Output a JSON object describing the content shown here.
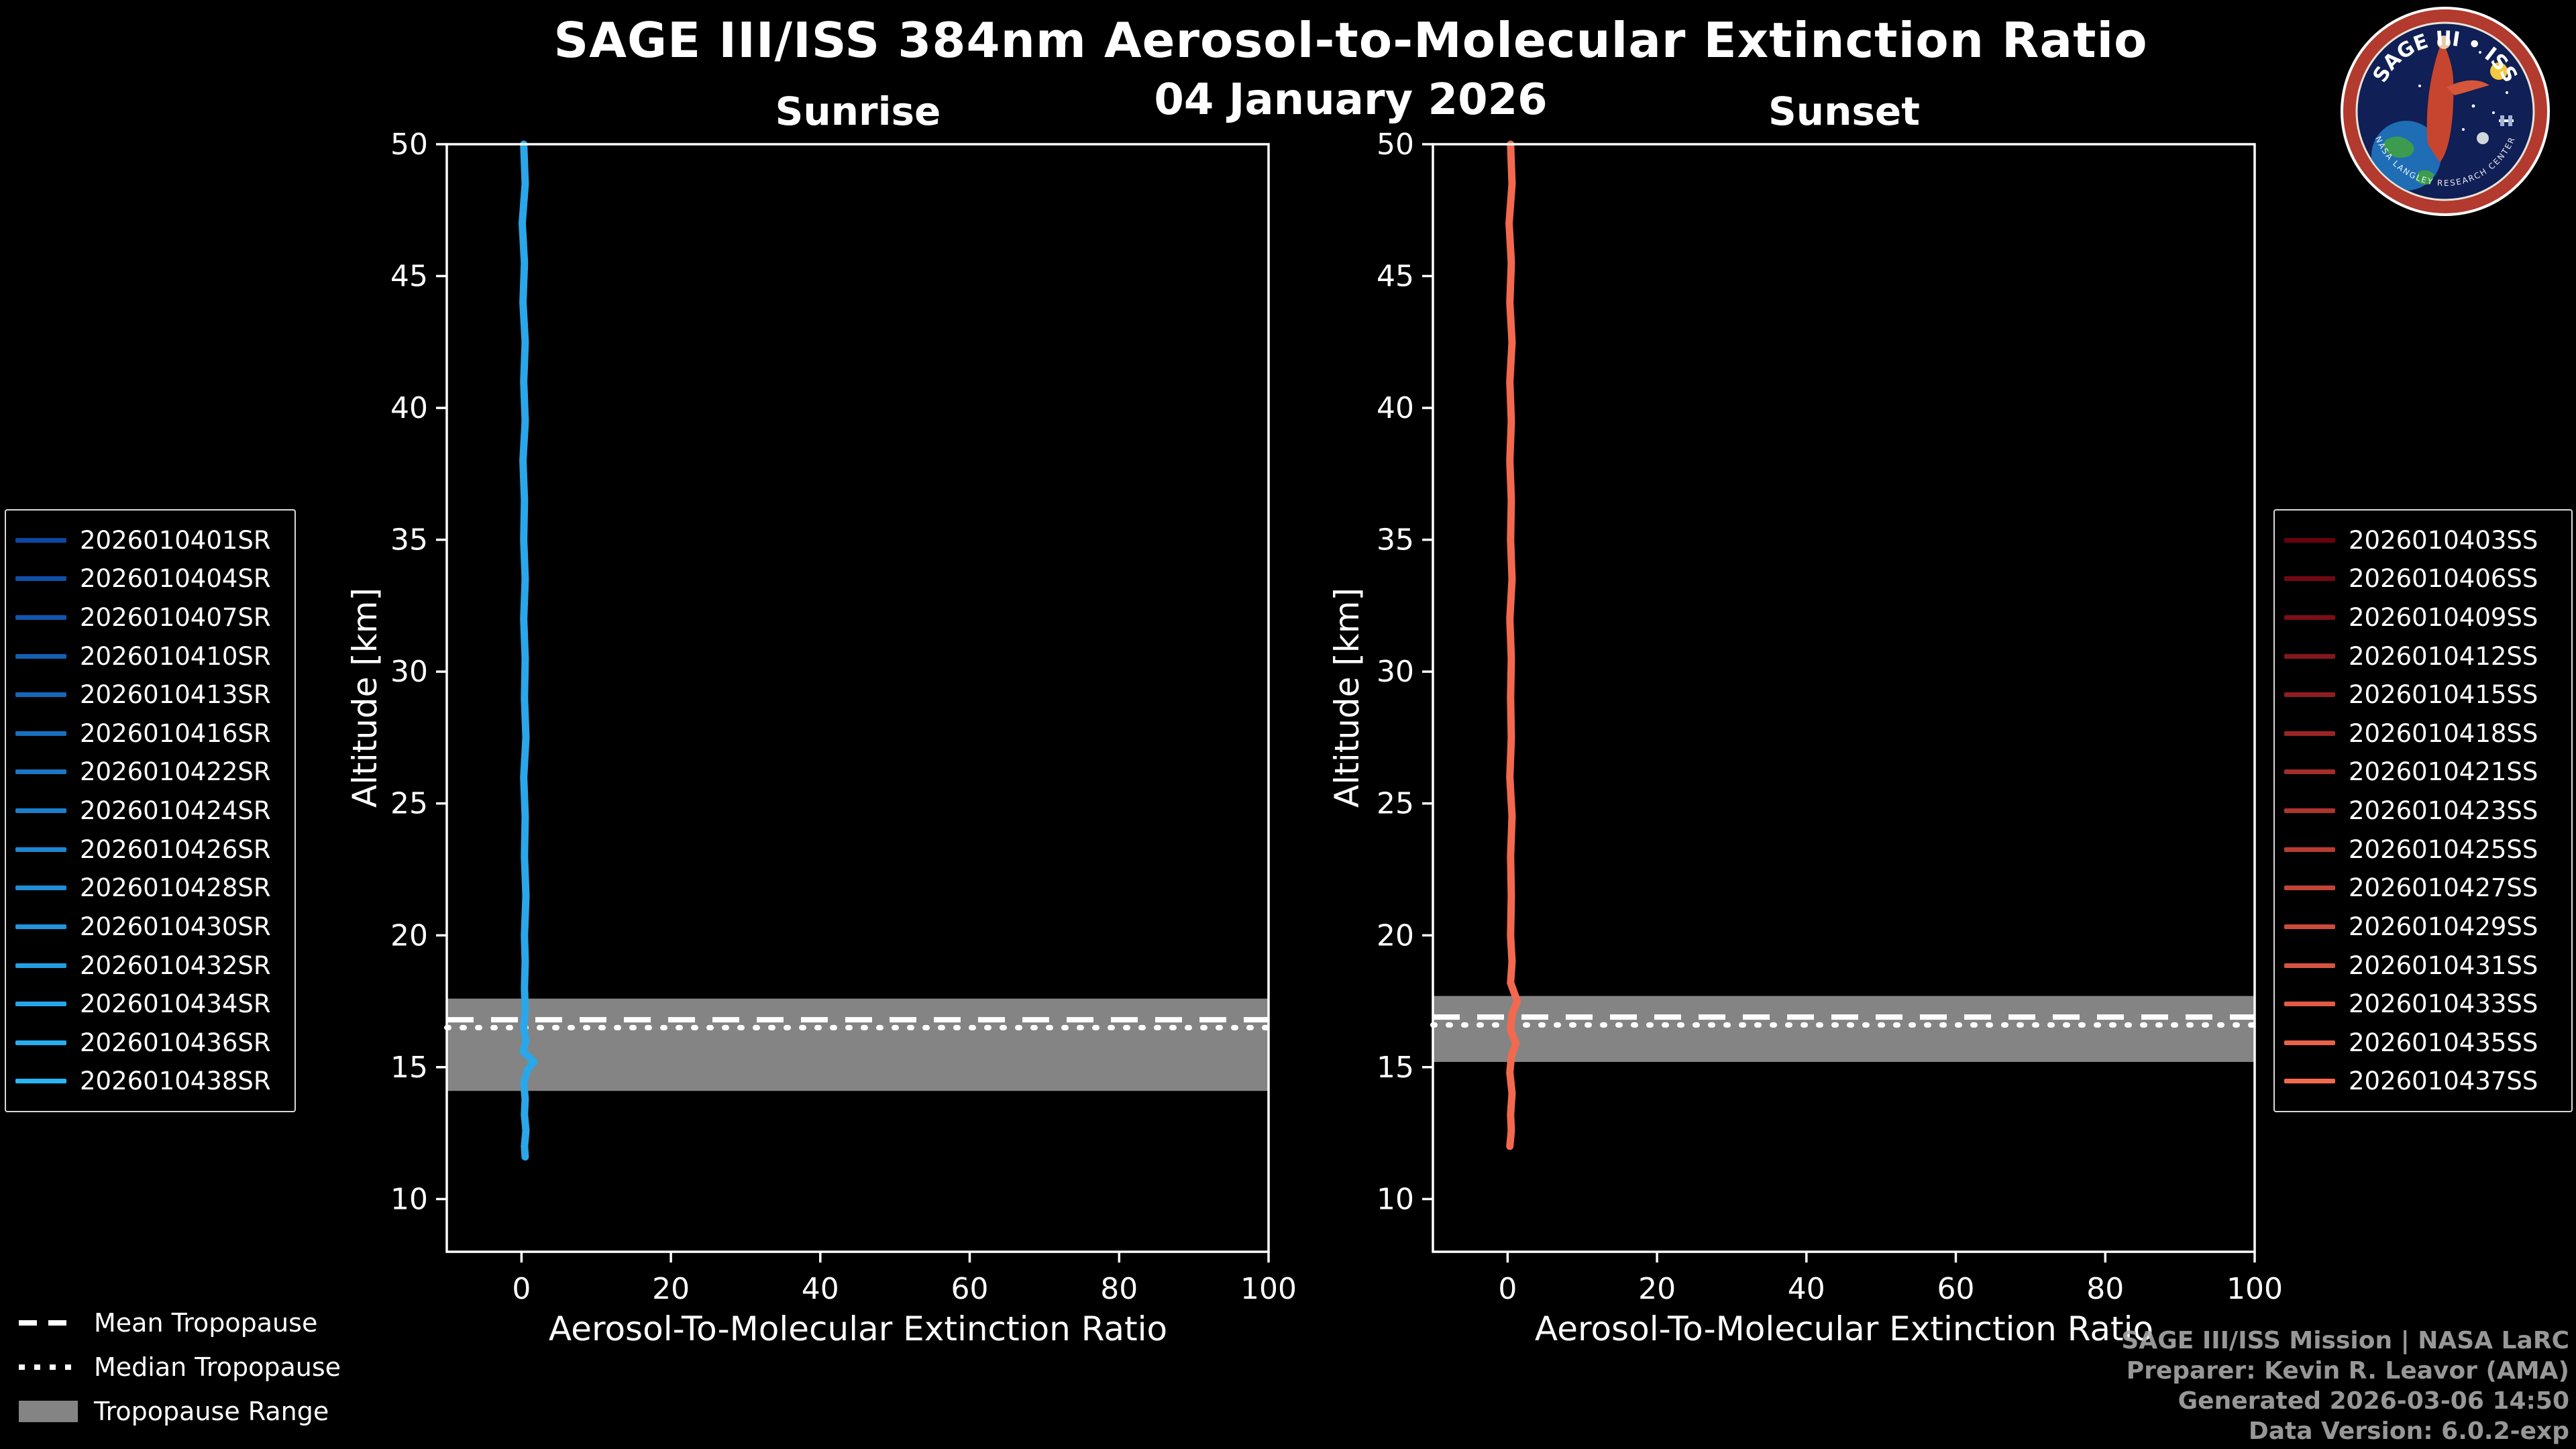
{
  "header": {
    "title": "SAGE III/ISS 384nm Aerosol-to-Molecular Extinction Ratio",
    "date": "04 January 2026"
  },
  "logo": {
    "title": "SAGE III • ISS",
    "ring_text": "NASA LANGLEY RESEARCH CENTER"
  },
  "tropopause_legend": {
    "items": [
      {
        "label": "Mean Tropopause",
        "style": "dashed"
      },
      {
        "label": "Median Tropopause",
        "style": "dotted"
      },
      {
        "label": "Tropopause Range",
        "style": "band",
        "color": "#848484"
      }
    ]
  },
  "credits": {
    "line1": "SAGE III/ISS Mission | NASA LaRC",
    "line2": "Preparer: Kevin R. Leavor (AMA)",
    "line3": "Generated 2026-03-06 14:50",
    "line4": "Data Version: 6.0.2-exp"
  },
  "chart_data": [
    {
      "type": "line",
      "title": "Sunrise",
      "xlabel": "Aerosol-To-Molecular Extinction Ratio",
      "ylabel": "Altitude [km]",
      "xlim": [
        -10,
        100
      ],
      "ylim": [
        8,
        50
      ],
      "xticks": [
        0,
        20,
        40,
        60,
        80,
        100
      ],
      "yticks": [
        10,
        15,
        20,
        25,
        30,
        35,
        40,
        45,
        50
      ],
      "grid": false,
      "legend_position": "outside-left",
      "tropopause": {
        "mean_km": 16.8,
        "median_km": 16.5,
        "range_km": [
          14.1,
          17.6
        ]
      },
      "band_color": "#848484",
      "profile_color": "#2ba6e8",
      "profile_points": [
        [
          0.3,
          50
        ],
        [
          0.5,
          48.5
        ],
        [
          0.1,
          47
        ],
        [
          0.4,
          45.5
        ],
        [
          0.2,
          44
        ],
        [
          0.5,
          42.5
        ],
        [
          0.3,
          41
        ],
        [
          0.5,
          39.5
        ],
        [
          0.2,
          38
        ],
        [
          0.4,
          36.5
        ],
        [
          0.3,
          35
        ],
        [
          0.5,
          33.5
        ],
        [
          0.3,
          32
        ],
        [
          0.5,
          30.5
        ],
        [
          0.4,
          29
        ],
        [
          0.6,
          27.5
        ],
        [
          0.3,
          26
        ],
        [
          0.5,
          24.5
        ],
        [
          0.4,
          23
        ],
        [
          0.6,
          21.5
        ],
        [
          0.4,
          20
        ],
        [
          0.5,
          19
        ],
        [
          0.4,
          18
        ],
        [
          0.5,
          17.2
        ],
        [
          0.3,
          16.5
        ],
        [
          0.6,
          16
        ],
        [
          0.2,
          15.6
        ],
        [
          1.7,
          15.2
        ],
        [
          0.8,
          14.9
        ],
        [
          0.3,
          14.4
        ],
        [
          0.5,
          13.8
        ],
        [
          0.4,
          13.2
        ],
        [
          0.6,
          12.6
        ],
        [
          0.4,
          12
        ],
        [
          0.5,
          11.6
        ]
      ],
      "series": [
        {
          "name": "2026010401SR",
          "color": "#0d47a1"
        },
        {
          "name": "2026010404SR",
          "color": "#0f4fa7"
        },
        {
          "name": "2026010407SR",
          "color": "#1157ad"
        },
        {
          "name": "2026010410SR",
          "color": "#135fb3"
        },
        {
          "name": "2026010413SR",
          "color": "#1567b9"
        },
        {
          "name": "2026010416SR",
          "color": "#176fbf"
        },
        {
          "name": "2026010422SR",
          "color": "#1977c5"
        },
        {
          "name": "2026010424SR",
          "color": "#1b7fcb"
        },
        {
          "name": "2026010426SR",
          "color": "#1d87d1"
        },
        {
          "name": "2026010428SR",
          "color": "#1f8ed7"
        },
        {
          "name": "2026010430SR",
          "color": "#2196de"
        },
        {
          "name": "2026010432SR",
          "color": "#239ee4"
        },
        {
          "name": "2026010434SR",
          "color": "#25a6ea"
        },
        {
          "name": "2026010436SR",
          "color": "#27aef0"
        },
        {
          "name": "2026010438SR",
          "color": "#29b6f6"
        }
      ]
    },
    {
      "type": "line",
      "title": "Sunset",
      "xlabel": "Aerosol-To-Molecular Extinction Ratio",
      "ylabel": "Altitude [km]",
      "xlim": [
        -10,
        100
      ],
      "ylim": [
        8,
        50
      ],
      "xticks": [
        0,
        20,
        40,
        60,
        80,
        100
      ],
      "yticks": [
        10,
        15,
        20,
        25,
        30,
        35,
        40,
        45,
        50
      ],
      "grid": false,
      "legend_position": "outside-right",
      "tropopause": {
        "mean_km": 16.9,
        "median_km": 16.6,
        "range_km": [
          15.2,
          17.7
        ]
      },
      "band_color": "#848484",
      "profile_color": "#f2694e",
      "profile_points": [
        [
          0.4,
          50
        ],
        [
          0.6,
          48.5
        ],
        [
          0.2,
          47
        ],
        [
          0.5,
          45.5
        ],
        [
          0.3,
          44
        ],
        [
          0.6,
          42.5
        ],
        [
          0.3,
          41
        ],
        [
          0.5,
          39.5
        ],
        [
          0.3,
          38
        ],
        [
          0.5,
          36.5
        ],
        [
          0.4,
          35
        ],
        [
          0.6,
          33.5
        ],
        [
          0.3,
          32
        ],
        [
          0.5,
          30.5
        ],
        [
          0.4,
          29
        ],
        [
          0.5,
          27.5
        ],
        [
          0.3,
          26
        ],
        [
          0.6,
          24.5
        ],
        [
          0.4,
          23
        ],
        [
          0.5,
          21.5
        ],
        [
          0.4,
          20
        ],
        [
          0.6,
          19
        ],
        [
          0.4,
          18.2
        ],
        [
          1.3,
          17.5
        ],
        [
          0.6,
          17
        ],
        [
          0.4,
          16.4
        ],
        [
          1.1,
          15.9
        ],
        [
          0.5,
          15.4
        ],
        [
          0.3,
          14.8
        ],
        [
          0.6,
          14
        ],
        [
          0.4,
          13.2
        ],
        [
          0.5,
          12.6
        ],
        [
          0.3,
          12
        ]
      ],
      "series": [
        {
          "name": "2026010403SS",
          "color": "#67000d"
        },
        {
          "name": "2026010406SS",
          "color": "#710812"
        },
        {
          "name": "2026010409SS",
          "color": "#7b0f16"
        },
        {
          "name": "2026010412SS",
          "color": "#85171b"
        },
        {
          "name": "2026010415SS",
          "color": "#8f1e20"
        },
        {
          "name": "2026010418SS",
          "color": "#992624"
        },
        {
          "name": "2026010421SS",
          "color": "#a32d29"
        },
        {
          "name": "2026010423SS",
          "color": "#ae352e"
        },
        {
          "name": "2026010425SS",
          "color": "#b83c32"
        },
        {
          "name": "2026010427SS",
          "color": "#c24437"
        },
        {
          "name": "2026010429SS",
          "color": "#cc4b3b"
        },
        {
          "name": "2026010431SS",
          "color": "#d65340"
        },
        {
          "name": "2026010433SS",
          "color": "#e05a45"
        },
        {
          "name": "2026010435SS",
          "color": "#ea6249"
        },
        {
          "name": "2026010437SS",
          "color": "#f4694e"
        }
      ]
    }
  ]
}
